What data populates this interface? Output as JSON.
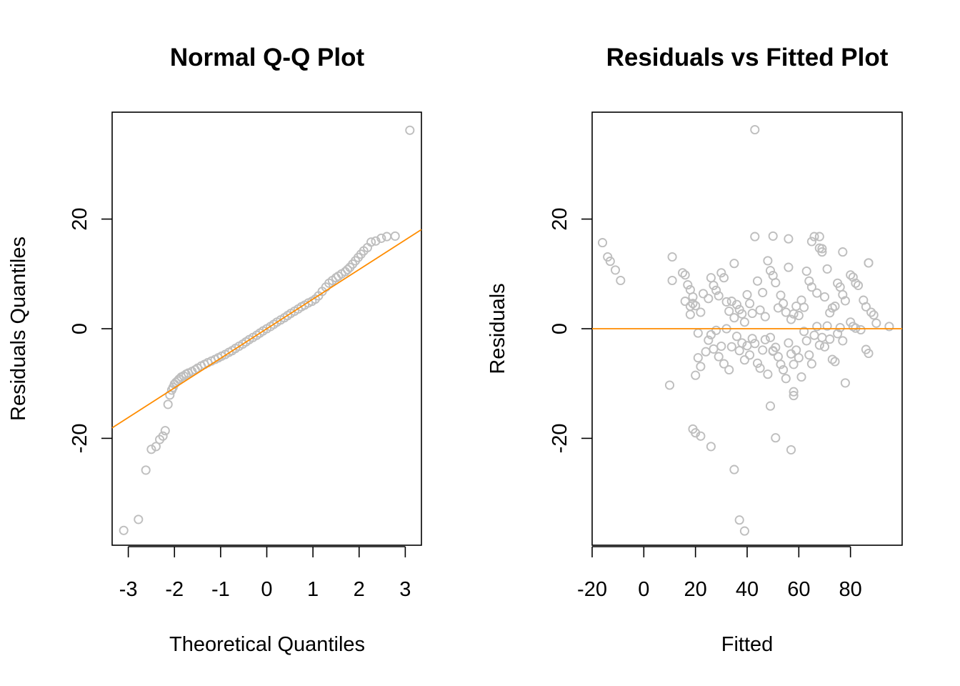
{
  "chart_data": [
    {
      "type": "scatter",
      "title": "Normal Q-Q Plot",
      "xlabel": "Theoretical Quantiles",
      "ylabel": "Residuals Quantiles",
      "xlim": [
        -3.35,
        3.35
      ],
      "ylim": [
        -39.5,
        39.5
      ],
      "xticks": [
        -3,
        -2,
        -1,
        0,
        1,
        2,
        3
      ],
      "yticks": [
        -20,
        0,
        20
      ],
      "grid": false,
      "point_color": "#bebebe",
      "line_color": "#ff8c00",
      "reference_line": {
        "intercept": 0,
        "slope": 5.4
      },
      "series": [
        {
          "x": [
            -3.1,
            -2.78,
            -2.62,
            -2.5,
            -2.4,
            -2.32,
            -2.25,
            -2.2,
            -2.14,
            -2.1,
            -2.06,
            -2.03,
            -2.0,
            -1.97,
            -1.93,
            -1.9,
            -1.85,
            -1.8,
            -1.75,
            -1.7,
            -1.62,
            -1.55,
            -1.5,
            -1.42,
            -1.35,
            -1.28,
            -1.2,
            -1.12,
            -1.05,
            -0.98,
            -0.9,
            -0.82,
            -0.75,
            -0.68,
            -0.6,
            -0.52,
            -0.45,
            -0.38,
            -0.3,
            -0.22,
            -0.15,
            -0.08,
            0.0,
            0.08,
            0.15,
            0.22,
            0.3,
            0.38,
            0.45,
            0.52,
            0.6,
            0.68,
            0.75,
            0.82,
            0.9,
            0.98,
            1.05,
            1.12,
            1.2,
            1.28,
            1.35,
            1.42,
            1.5,
            1.55,
            1.62,
            1.7,
            1.75,
            1.8,
            1.86,
            1.92,
            1.98,
            2.04,
            2.1,
            2.18,
            2.26,
            2.36,
            2.48,
            2.6,
            2.78,
            3.1
          ],
          "y": [
            -36.8,
            -34.8,
            -25.8,
            -22.0,
            -21.5,
            -20.2,
            -19.6,
            -18.6,
            -13.8,
            -12.1,
            -11.2,
            -10.7,
            -10.1,
            -9.8,
            -9.5,
            -9.2,
            -8.8,
            -8.6,
            -8.3,
            -8.1,
            -7.8,
            -7.5,
            -7.2,
            -6.8,
            -6.5,
            -6.2,
            -5.9,
            -5.6,
            -5.3,
            -5.0,
            -4.7,
            -4.3,
            -4.0,
            -3.6,
            -3.2,
            -2.8,
            -2.4,
            -2.0,
            -1.6,
            -1.2,
            -0.8,
            -0.4,
            0.0,
            0.4,
            0.8,
            1.2,
            1.6,
            2.0,
            2.4,
            2.8,
            3.2,
            3.6,
            4.0,
            4.3,
            4.7,
            5.0,
            5.4,
            6.0,
            6.8,
            7.6,
            8.3,
            8.8,
            9.3,
            9.6,
            10.0,
            10.4,
            10.8,
            11.2,
            11.8,
            12.4,
            13.0,
            13.6,
            14.2,
            14.8,
            15.8,
            16.0,
            16.5,
            16.8,
            16.9,
            36.2
          ]
        }
      ]
    },
    {
      "type": "scatter",
      "title": "Residuals vs Fitted Plot",
      "xlabel": "Fitted",
      "ylabel": "Residuals",
      "xlim": [
        -20,
        100
      ],
      "ylim": [
        -39.5,
        39.5
      ],
      "xticks": [
        -20,
        0,
        20,
        40,
        60,
        80
      ],
      "yticks": [
        -20,
        0,
        20
      ],
      "grid": false,
      "point_color": "#bebebe",
      "line_color": "#ff8c00",
      "reference_line": {
        "intercept": 0,
        "slope": 0
      },
      "series": [
        {
          "x": [
            -16,
            -14,
            -13,
            -11,
            -9,
            10,
            11,
            11,
            15,
            16,
            16,
            17,
            18,
            18,
            19,
            19,
            20,
            20,
            21,
            21,
            22,
            22,
            23,
            24,
            25,
            25,
            26,
            26,
            27,
            27,
            28,
            28,
            29,
            29,
            30,
            30,
            31,
            31,
            32,
            32,
            33,
            33,
            34,
            34,
            35,
            35,
            36,
            36,
            37,
            37,
            38,
            38,
            39,
            39,
            40,
            40,
            41,
            41,
            42,
            42,
            43,
            43,
            44,
            44,
            45,
            45,
            46,
            46,
            47,
            47,
            48,
            48,
            49,
            49,
            50,
            50,
            51,
            51,
            52,
            52,
            53,
            53,
            54,
            54,
            55,
            55,
            56,
            56,
            57,
            57,
            58,
            58,
            59,
            59,
            60,
            60,
            61,
            61,
            62,
            62,
            63,
            63,
            64,
            64,
            65,
            65,
            66,
            66,
            67,
            67,
            68,
            68,
            69,
            69,
            70,
            70,
            71,
            71,
            72,
            72,
            73,
            73,
            74,
            74,
            75,
            75,
            76,
            76,
            77,
            77,
            78,
            78,
            80,
            80,
            81,
            81,
            82,
            82,
            83,
            84,
            85,
            86,
            86,
            87,
            87,
            88,
            89,
            90,
            95,
            18,
            19,
            20,
            22,
            26,
            35,
            37,
            39,
            43,
            50,
            51,
            56,
            57,
            58,
            65,
            68,
            69,
            77,
            87,
            49,
            50,
            58
          ],
          "y": [
            15.7,
            13.1,
            12.3,
            10.7,
            8.8,
            -10.3,
            13.1,
            8.8,
            10.2,
            9.8,
            5.0,
            8.0,
            2.6,
            7.1,
            5.8,
            4.6,
            4.2,
            -8.5,
            -0.8,
            -5.3,
            3.0,
            -6.9,
            6.4,
            -4.2,
            5.5,
            -2.1,
            9.3,
            -1.1,
            7.9,
            -3.7,
            7.0,
            -0.3,
            6.0,
            -5.1,
            10.2,
            -3.2,
            9.3,
            -6.4,
            4.9,
            0.0,
            3.2,
            -7.5,
            5.0,
            -3.3,
            11.9,
            2.0,
            4.4,
            -1.4,
            3.5,
            -4.0,
            2.7,
            -2.6,
            1.2,
            -5.7,
            6.2,
            -3.1,
            4.6,
            -4.8,
            2.8,
            -1.8,
            16.8,
            -2.7,
            8.7,
            -6.3,
            3.4,
            -7.2,
            6.6,
            -3.9,
            2.2,
            -2.0,
            12.4,
            -8.3,
            10.6,
            -1.6,
            9.7,
            -4.1,
            8.4,
            -3.4,
            3.8,
            -5.1,
            6.1,
            -6.5,
            4.6,
            -7.5,
            3.0,
            -9.1,
            11.2,
            -2.6,
            1.7,
            -4.6,
            2.7,
            -11.5,
            4.1,
            -3.9,
            2.4,
            -5.3,
            5.2,
            -8.8,
            3.9,
            -0.5,
            10.5,
            -2.2,
            8.7,
            -4.8,
            7.6,
            -6.4,
            16.8,
            -1.2,
            6.5,
            0.4,
            14.7,
            -3.0,
            14.0,
            -1.6,
            5.8,
            -3.3,
            10.9,
            0.5,
            2.9,
            -1.9,
            3.8,
            -5.6,
            4.1,
            -6.0,
            8.3,
            -0.9,
            7.6,
            0.2,
            6.2,
            -2.2,
            5.1,
            -9.9,
            9.8,
            1.2,
            9.4,
            0.4,
            8.3,
            0.1,
            7.9,
            -0.2,
            5.2,
            -3.8,
            4.0,
            -4.5,
            12.0,
            3.0,
            2.5,
            1.0,
            0.4,
            4.1,
            -18.3,
            -19.0,
            -19.6,
            -21.5,
            -25.7,
            -34.9,
            -36.9,
            36.3,
            16.9,
            -19.9,
            16.4,
            -22.1,
            -12.2,
            15.9,
            16.8,
            14.6,
            14.0,
            12.0,
            -14.1,
            -4.0,
            -6.5
          ]
        }
      ]
    }
  ]
}
